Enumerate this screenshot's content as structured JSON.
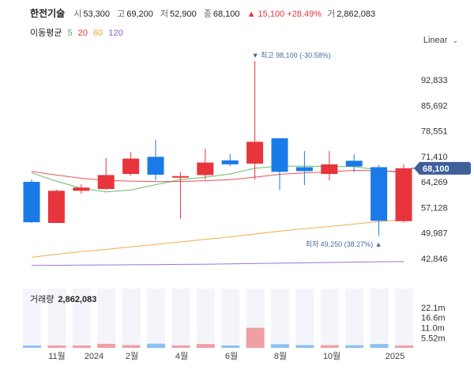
{
  "header": {
    "name": "한전기술",
    "open_label": "시",
    "open": "53,300",
    "high_label": "고",
    "high": "69,200",
    "low_label": "저",
    "low": "52,900",
    "close_label": "종",
    "close": "68,100",
    "change": "▲ 15,100",
    "change_pct": "+28.49%",
    "volume_label": "거",
    "volume": "2,862,083"
  },
  "moving_avg": {
    "label": "이동평균",
    "periods": [
      {
        "value": "5",
        "color": "#4caf50"
      },
      {
        "value": "20",
        "color": "#e8343b"
      },
      {
        "value": "60",
        "color": "#f0a030"
      },
      {
        "value": "120",
        "color": "#8a5cd0"
      }
    ]
  },
  "scale_control": {
    "label": "Linear",
    "icon": "chevron-down-icon"
  },
  "colors": {
    "up": "#e8343b",
    "down": "#1a7be8",
    "current_price_tag": "#3f5f9a",
    "annotation": "#4a6aa0"
  },
  "chart_data": {
    "type": "candlestick",
    "price_axis": {
      "ticks": [
        92833,
        85692,
        78551,
        71410,
        64269,
        57128,
        49987,
        42846
      ],
      "current_price": 68100,
      "current_price_label": "68,100"
    },
    "x_tick_labels": [
      "11월",
      "2024",
      "2월",
      "4월",
      "6월",
      "8월",
      "10월",
      "2025"
    ],
    "candles": [
      {
        "open": 64300,
        "high": 65000,
        "low": 52800,
        "close": 53000,
        "volume": 1.0,
        "dir": "down"
      },
      {
        "open": 52800,
        "high": 62100,
        "low": 52800,
        "close": 61800,
        "volume": 0.6,
        "dir": "up"
      },
      {
        "open": 61800,
        "high": 63600,
        "low": 61000,
        "close": 62700,
        "volume": 0.7,
        "dir": "up"
      },
      {
        "open": 62300,
        "high": 71000,
        "low": 62000,
        "close": 66200,
        "volume": 2.2,
        "dir": "up"
      },
      {
        "open": 66500,
        "high": 72600,
        "low": 66000,
        "close": 70800,
        "volume": 1.5,
        "dir": "up"
      },
      {
        "open": 71300,
        "high": 76000,
        "low": 64800,
        "close": 66300,
        "volume": 2.3,
        "dir": "down"
      },
      {
        "open": 65500,
        "high": 67000,
        "low": 54000,
        "close": 65900,
        "volume": 1.0,
        "dir": "up"
      },
      {
        "open": 66200,
        "high": 73600,
        "low": 65000,
        "close": 69700,
        "volume": 2.1,
        "dir": "up"
      },
      {
        "open": 70300,
        "high": 72100,
        "low": 68700,
        "close": 69200,
        "volume": 1.0,
        "dir": "down"
      },
      {
        "open": 69400,
        "high": 98100,
        "low": 65000,
        "close": 75500,
        "volume": 11.0,
        "dir": "up"
      },
      {
        "open": 76500,
        "high": 76500,
        "low": 62000,
        "close": 67100,
        "volume": 2.0,
        "dir": "down"
      },
      {
        "open": 68400,
        "high": 72900,
        "low": 63400,
        "close": 67300,
        "volume": 1.5,
        "dir": "down"
      },
      {
        "open": 66500,
        "high": 72900,
        "low": 64700,
        "close": 69200,
        "volume": 1.5,
        "dir": "up"
      },
      {
        "open": 70200,
        "high": 72000,
        "low": 67000,
        "close": 68600,
        "volume": 1.4,
        "dir": "down"
      },
      {
        "open": 68400,
        "high": 69000,
        "low": 49250,
        "close": 53400,
        "volume": 2.1,
        "dir": "down"
      },
      {
        "open": 53300,
        "high": 69200,
        "low": 52900,
        "close": 68100,
        "volume": 1.3,
        "dir": "up"
      }
    ],
    "ma_series": [
      {
        "period": "5",
        "color": "#4caf50",
        "values": [
          66800,
          64500,
          62500,
          61500,
          62000,
          63500,
          64900,
          65600,
          66500,
          68100,
          68700,
          68700,
          68600,
          68600,
          67600,
          66800
        ]
      },
      {
        "period": "20",
        "color": "#e8343b",
        "values": [
          67200,
          66200,
          65300,
          64700,
          64500,
          64400,
          64400,
          64600,
          64900,
          65600,
          66400,
          66800,
          67100,
          67500,
          67400,
          67100
        ]
      },
      {
        "period": "60",
        "color": "#f0a030",
        "values": [
          43200,
          44000,
          44800,
          45400,
          46100,
          46800,
          47500,
          48200,
          48900,
          49700,
          50500,
          51200,
          51800,
          52500,
          53200,
          53700
        ]
      },
      {
        "period": "120",
        "color": "#8a5cd0",
        "values": [
          40900,
          40950,
          41000,
          41050,
          41100,
          41150,
          41200,
          41250,
          41350,
          41450,
          41550,
          41650,
          41750,
          41850,
          41950,
          42000
        ]
      }
    ],
    "annotations": {
      "high": {
        "text": "▼ 최고 98,100 (-30.58%)",
        "value": 98100,
        "candle": 9
      },
      "low": {
        "text": "최저 49,250 (38.27%) ▲",
        "value": 49250,
        "candle": 14
      }
    },
    "volume_panel": {
      "label": "거래량",
      "value": "2,862,083",
      "unit_note": "millions",
      "ticks": [
        "22.1m",
        "16.6m",
        "11.0m",
        "5.52m"
      ],
      "tick_values": [
        22.1,
        16.6,
        11.0,
        5.52
      ]
    }
  }
}
